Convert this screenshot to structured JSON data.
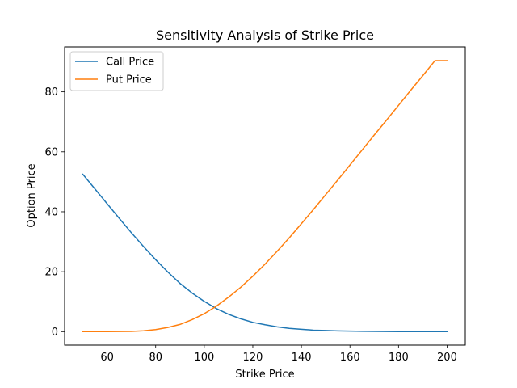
{
  "chart_data": {
    "type": "line",
    "title": "Sensitivity Analysis of Strike Price",
    "xlabel": "Strike Price",
    "ylabel": "Option Price",
    "xlim": [
      42.5,
      207.5
    ],
    "ylim": [
      -4.5,
      95
    ],
    "xticks": [
      60,
      80,
      100,
      120,
      140,
      160,
      180,
      200
    ],
    "yticks": [
      0,
      20,
      40,
      60,
      80
    ],
    "grid": false,
    "legend_position": "top-left",
    "x": [
      50,
      55,
      60,
      65,
      70,
      75,
      80,
      85,
      90,
      95,
      100,
      105,
      110,
      115,
      120,
      125,
      130,
      135,
      140,
      145,
      150,
      155,
      160,
      165,
      170,
      175,
      180,
      185,
      190,
      195,
      200
    ],
    "series": [
      {
        "name": "Call Price",
        "color": "#1f77b4",
        "values": [
          52.5,
          47.6,
          42.7,
          37.8,
          33.0,
          28.4,
          24.0,
          19.9,
          16.1,
          12.9,
          10.1,
          7.7,
          5.8,
          4.3,
          3.1,
          2.3,
          1.6,
          1.1,
          0.8,
          0.5,
          0.4,
          0.25,
          0.17,
          0.11,
          0.07,
          0.05,
          0.03,
          0.02,
          0.01,
          0.01,
          0.0
        ]
      },
      {
        "name": "Put Price",
        "color": "#ff7f0e",
        "values": [
          0.0,
          0.0,
          0.0,
          0.05,
          0.1,
          0.3,
          0.7,
          1.4,
          2.4,
          4.0,
          6.0,
          8.5,
          11.5,
          14.8,
          18.5,
          22.5,
          26.8,
          31.3,
          36.0,
          40.8,
          45.7,
          50.6,
          55.6,
          60.6,
          65.6,
          70.5,
          75.5,
          80.5,
          85.4,
          90.4,
          90.4
        ]
      }
    ]
  }
}
